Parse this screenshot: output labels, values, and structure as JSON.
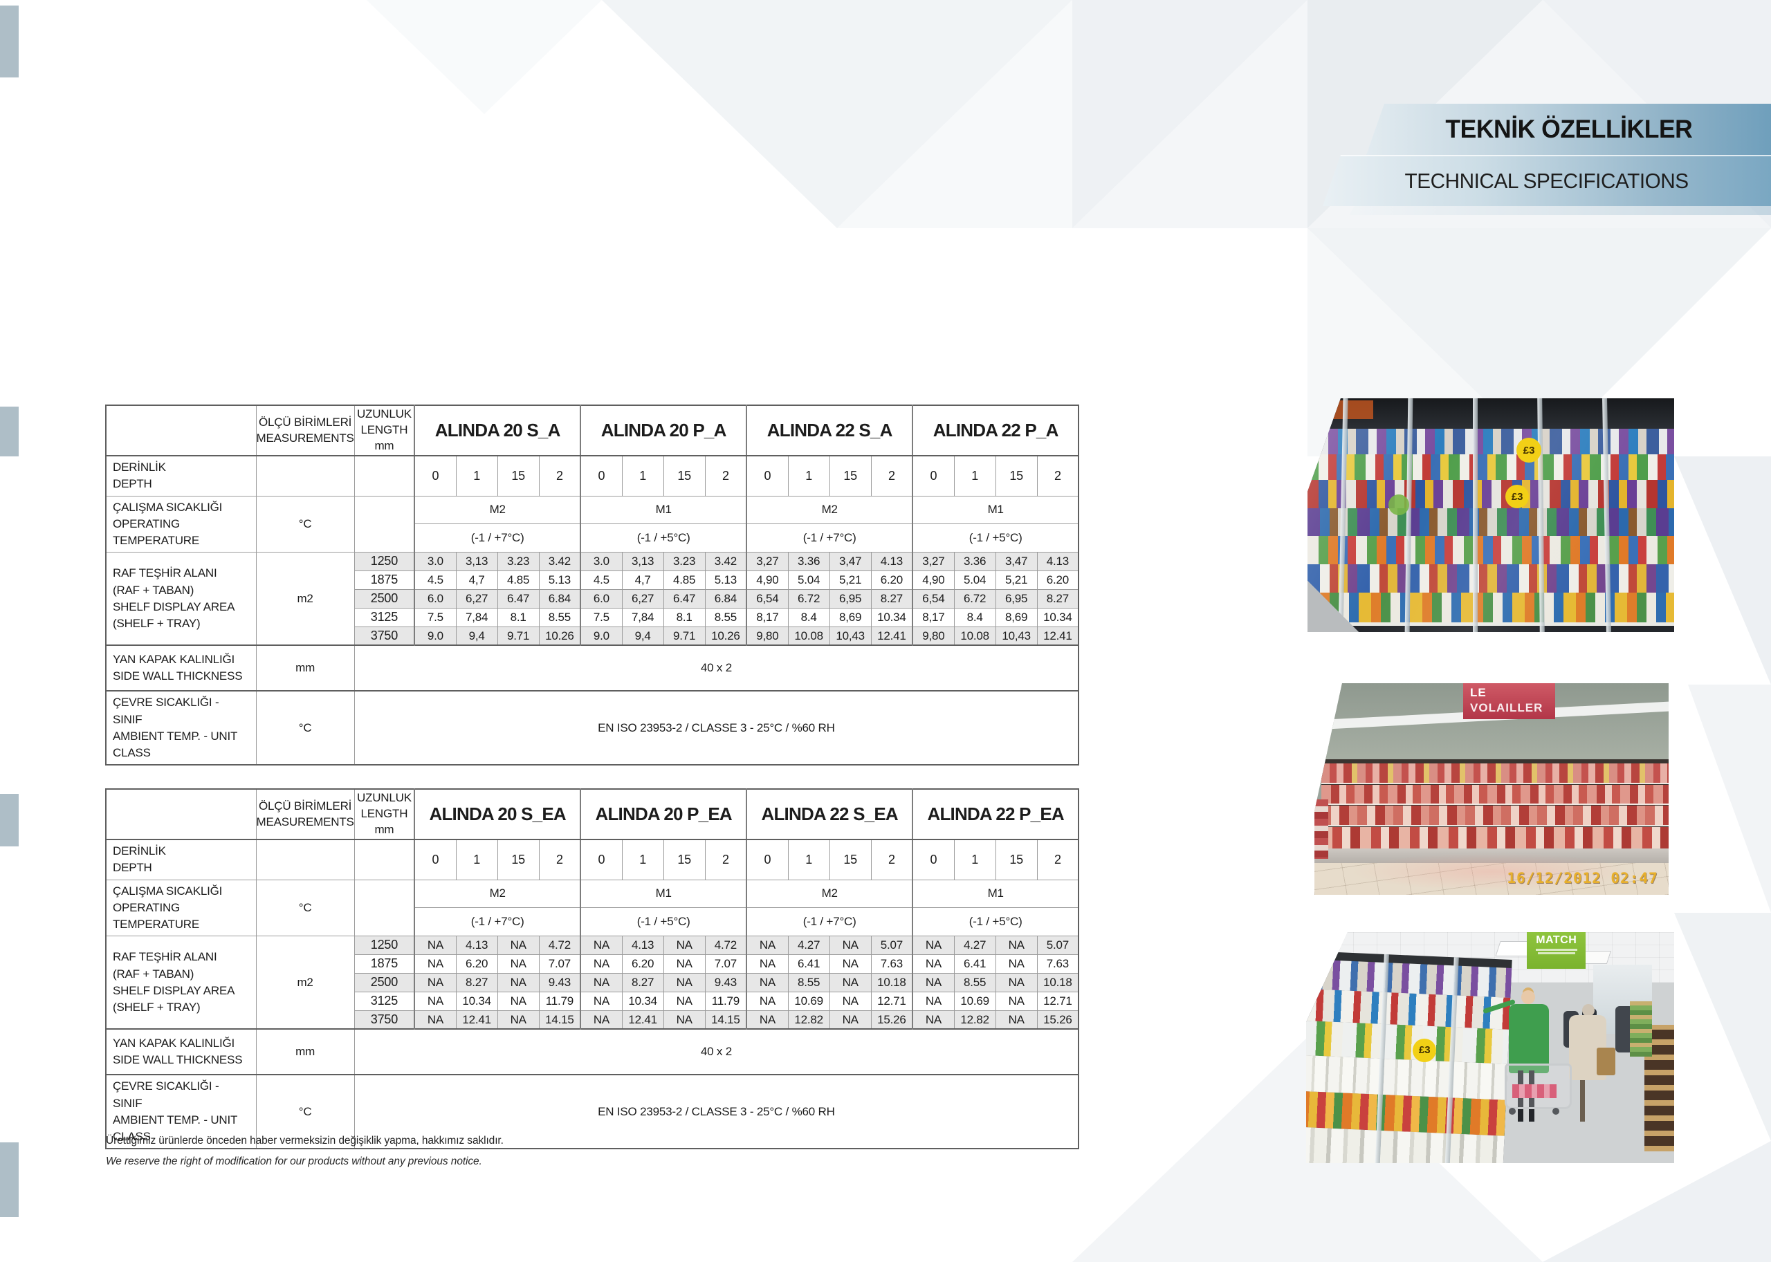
{
  "banner": {
    "title_tr": "TEKNİK ÖZELLİKLER",
    "title_en": "TECHNICAL SPECIFICATIONS"
  },
  "footer": {
    "note_tr": "Ürettiğimiz ürünlerde önceden haber vermeksizin değişiklik yapma, hakkımız saklıdır.",
    "note_en": "We reserve the right of modification for our products without any previous notice."
  },
  "labels": {
    "measurements": [
      "ÖLÇÜ BİRİMLERİ",
      "MEASUREMENTS"
    ],
    "length": [
      "UZUNLUK",
      "LENGTH",
      "mm"
    ],
    "depth": [
      "DERİNLİK",
      "DEPTH"
    ],
    "operating_temp": [
      "ÇALIŞMA SICAKLIĞI",
      "OPERATING TEMPERATURE"
    ],
    "shelf_area": [
      "RAF TEŞHİR ALANI",
      "(RAF + TABAN)",
      "SHELF DISPLAY AREA",
      "(SHELF + TRAY)"
    ],
    "side_wall": [
      "YAN KAPAK KALINLIĞI",
      "SIDE WALL THICKNESS"
    ],
    "ambient": [
      "ÇEVRE SICAKLIĞI - SINIF",
      "AMBIENT TEMP. - UNIT CLASS"
    ],
    "units": {
      "temp": "°C",
      "area": "m2",
      "side": "mm",
      "ambient": "°C"
    }
  },
  "tables": [
    {
      "models": [
        "ALINDA 20 S_A",
        "ALINDA 20 P_A",
        "ALINDA 22 S_A",
        "ALINDA 22 P_A"
      ],
      "depth_values": [
        "0",
        "1",
        "15",
        "2"
      ],
      "temp_classes": [
        {
          "name": "M2",
          "range": "(-1 / +7°C)"
        },
        {
          "name": "M1",
          "range": "(-1 / +5°C)"
        },
        {
          "name": "M2",
          "range": "(-1 / +7°C)"
        },
        {
          "name": "M1",
          "range": "(-1 / +5°C)"
        }
      ],
      "rows": [
        {
          "length": "1250",
          "shaded": true,
          "values": [
            "3.0",
            "3,13",
            "3.23",
            "3.42",
            "3.0",
            "3,13",
            "3.23",
            "3.42",
            "3,27",
            "3.36",
            "3,47",
            "4.13",
            "3,27",
            "3.36",
            "3,47",
            "4.13"
          ]
        },
        {
          "length": "1875",
          "shaded": false,
          "values": [
            "4.5",
            "4,7",
            "4.85",
            "5.13",
            "4.5",
            "4,7",
            "4.85",
            "5.13",
            "4,90",
            "5.04",
            "5,21",
            "6.20",
            "4,90",
            "5.04",
            "5,21",
            "6.20"
          ]
        },
        {
          "length": "2500",
          "shaded": true,
          "values": [
            "6.0",
            "6,27",
            "6.47",
            "6.84",
            "6.0",
            "6,27",
            "6.47",
            "6.84",
            "6,54",
            "6.72",
            "6,95",
            "8.27",
            "6,54",
            "6.72",
            "6,95",
            "8.27"
          ]
        },
        {
          "length": "3125",
          "shaded": false,
          "values": [
            "7.5",
            "7,84",
            "8.1",
            "8.55",
            "7.5",
            "7,84",
            "8.1",
            "8.55",
            "8,17",
            "8.4",
            "8,69",
            "10.34",
            "8,17",
            "8.4",
            "8,69",
            "10.34"
          ]
        },
        {
          "length": "3750",
          "shaded": true,
          "values": [
            "9.0",
            "9,4",
            "9.71",
            "10.26",
            "9.0",
            "9,4",
            "9.71",
            "10.26",
            "9,80",
            "10.08",
            "10,43",
            "12.41",
            "9,80",
            "10.08",
            "10,43",
            "12.41"
          ]
        }
      ],
      "side_value": "40 x 2",
      "ambient_value": "EN ISO 23953-2 / CLASSE 3 - 25°C / %60 RH"
    },
    {
      "models": [
        "ALINDA 20 S_EA",
        "ALINDA 20 P_EA",
        "ALINDA 22 S_EA",
        "ALINDA 22 P_EA"
      ],
      "depth_values": [
        "0",
        "1",
        "15",
        "2"
      ],
      "temp_classes": [
        {
          "name": "M2",
          "range": "(-1 / +7°C)"
        },
        {
          "name": "M1",
          "range": "(-1 / +5°C)"
        },
        {
          "name": "M2",
          "range": "(-1 / +7°C)"
        },
        {
          "name": "M1",
          "range": "(-1 / +5°C)"
        }
      ],
      "rows": [
        {
          "length": "1250",
          "shaded": true,
          "values": [
            "NA",
            "4.13",
            "NA",
            "4.72",
            "NA",
            "4.13",
            "NA",
            "4.72",
            "NA",
            "4.27",
            "NA",
            "5.07",
            "NA",
            "4.27",
            "NA",
            "5.07"
          ]
        },
        {
          "length": "1875",
          "shaded": false,
          "values": [
            "NA",
            "6.20",
            "NA",
            "7.07",
            "NA",
            "6.20",
            "NA",
            "7.07",
            "NA",
            "6.41",
            "NA",
            "7.63",
            "NA",
            "6.41",
            "NA",
            "7.63"
          ]
        },
        {
          "length": "2500",
          "shaded": true,
          "values": [
            "NA",
            "8.27",
            "NA",
            "9.43",
            "NA",
            "8.27",
            "NA",
            "9.43",
            "NA",
            "8.55",
            "NA",
            "10.18",
            "NA",
            "8.55",
            "NA",
            "10.18"
          ]
        },
        {
          "length": "3125",
          "shaded": false,
          "values": [
            "NA",
            "10.34",
            "NA",
            "11.79",
            "NA",
            "10.34",
            "NA",
            "11.79",
            "NA",
            "10.69",
            "NA",
            "12.71",
            "NA",
            "10.69",
            "NA",
            "12.71"
          ]
        },
        {
          "length": "3750",
          "shaded": true,
          "values": [
            "NA",
            "12.41",
            "NA",
            "14.15",
            "NA",
            "12.41",
            "NA",
            "14.15",
            "NA",
            "12.82",
            "NA",
            "15.26",
            "NA",
            "12.82",
            "NA",
            "15.26"
          ]
        }
      ],
      "side_value": "40 x 2",
      "ambient_value": "EN ISO 23953-2 / CLASSE 3 - 25°C / %60 RH"
    }
  ],
  "photos": [
    {
      "name": "glass-door-dairy-case",
      "badge1": "£3",
      "badge2": "£3"
    },
    {
      "name": "open-meat-case",
      "sign_line1": "LE",
      "sign_line2": "VOLAILLER",
      "timestamp": "16/12/2012 02:47"
    },
    {
      "name": "store-aisle-shoppers",
      "sign": "MATCH",
      "badge": "£3"
    }
  ],
  "colors": {
    "banner_right": "#6f9fbc",
    "page_tab": "#aebec7",
    "row_shade": "#e7e7e7",
    "timestamp": "#e8b02c",
    "price_badge": "#f2d016",
    "match_green": "#8fc43e"
  }
}
